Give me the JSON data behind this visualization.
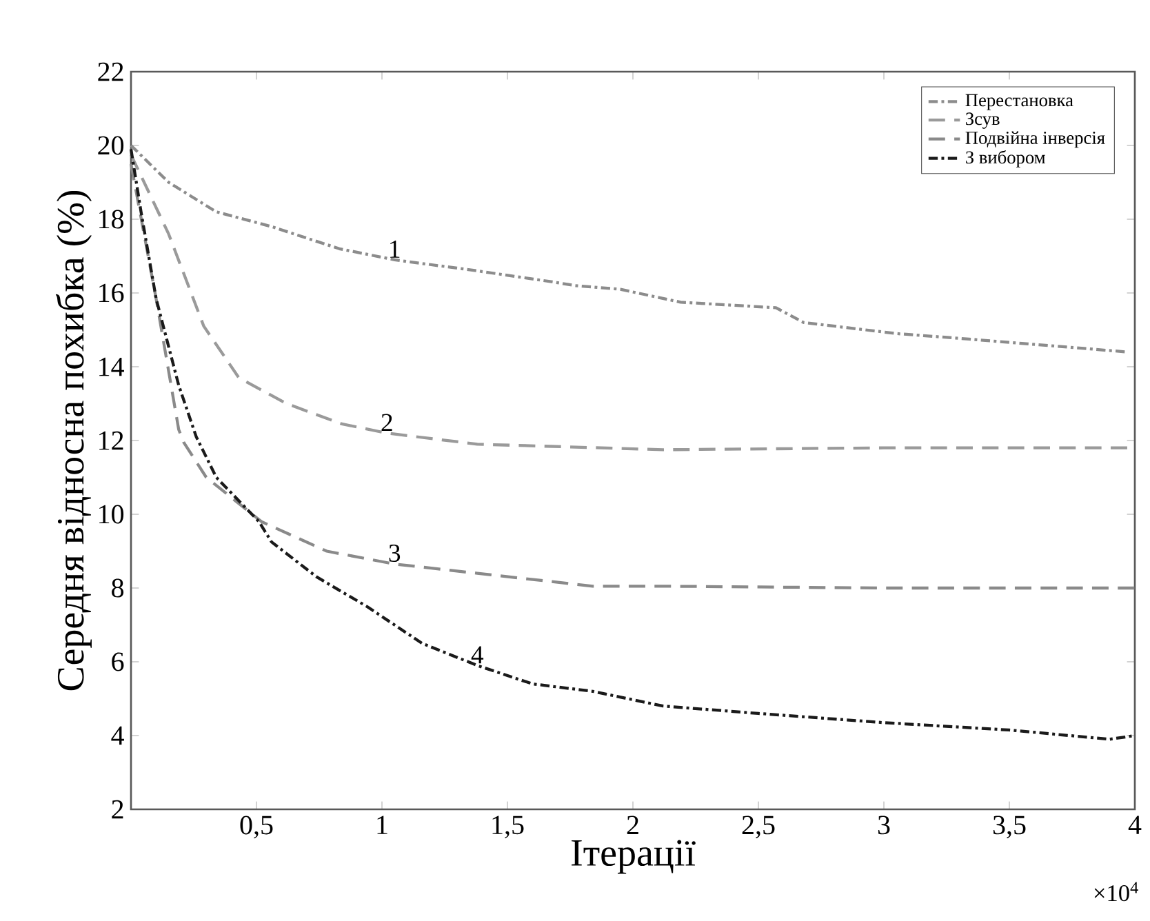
{
  "chart_data": {
    "type": "line",
    "xlabel": "Ітерації",
    "ylabel": "Середня відносна похибка (%)",
    "x": [
      0,
      0.15,
      0.34,
      0.56,
      0.83,
      1.05,
      1.38,
      1.68,
      1.77,
      1.95,
      2.19,
      2.57,
      2.68,
      3.05,
      3.34,
      3.97
    ],
    "series": [
      {
        "name": "Перестановка",
        "color": "#8c8c8c",
        "line_style": "dashdot",
        "values": [
          20.0,
          19.0,
          18.2,
          17.8,
          17.2,
          16.9,
          16.6,
          16.3,
          16.2,
          16.1,
          15.75,
          15.6,
          15.2,
          14.9,
          14.75,
          14.4
        ]
      },
      {
        "name": "Зсув",
        "color": "#9a9a9a",
        "line_style": "dashed",
        "x": [
          0,
          0.15,
          0.29,
          0.43,
          0.62,
          0.84,
          1.02,
          1.38,
          2.12,
          3.0,
          4.0
        ],
        "values": [
          19.75,
          17.6,
          15.1,
          13.7,
          13.0,
          12.45,
          12.2,
          11.9,
          11.75,
          11.8,
          11.8
        ]
      },
      {
        "name": "Подвійна інверсія",
        "color": "#8a8a8a",
        "line_style": "dashed",
        "x": [
          0,
          0.1,
          0.19,
          0.21,
          0.3,
          0.52,
          0.78,
          1.05,
          1.38,
          1.84,
          2.12,
          3.0,
          4.0
        ],
        "values": [
          19.5,
          15.85,
          12.3,
          11.95,
          11.0,
          9.8,
          9.0,
          8.65,
          8.4,
          8.05,
          8.05,
          8.0,
          8.0
        ]
      },
      {
        "name": "З вибором",
        "color": "#1a1a1a",
        "line_style": "dashdot",
        "x": [
          0,
          0.04,
          0.1,
          0.19,
          0.26,
          0.34,
          0.51,
          0.56,
          0.74,
          0.94,
          1.16,
          1.38,
          1.6,
          1.84,
          2.12,
          2.5,
          3.0,
          3.5,
          3.9,
          4.0
        ],
        "values": [
          19.9,
          18.2,
          15.85,
          13.5,
          12.1,
          11.0,
          9.8,
          9.25,
          8.3,
          7.5,
          6.5,
          5.9,
          5.4,
          5.2,
          4.8,
          4.6,
          4.35,
          4.15,
          3.9,
          4.0
        ]
      }
    ],
    "xlim": [
      0,
      4
    ],
    "xticks": [
      {
        "value": 0.5,
        "label": "0,5"
      },
      1,
      {
        "value": 1.5,
        "label": "1,5"
      },
      2,
      {
        "value": 2.5,
        "label": "2,5"
      },
      3,
      {
        "value": 3.5,
        "label": "3,5"
      },
      4
    ],
    "ylim": [
      2,
      22
    ],
    "yticks": [
      2,
      4,
      6,
      8,
      10,
      12,
      14,
      16,
      18,
      20,
      22
    ],
    "grid": false,
    "legend": "top right",
    "marker": "none",
    "annotations": [
      {
        "text": "1",
        "x": 1.05,
        "y": 16.9
      },
      {
        "text": "2",
        "x": 1.02,
        "y": 12.2
      },
      {
        "text": "3",
        "x": 1.05,
        "y": 8.65
      },
      {
        "text": "4",
        "x": 1.38,
        "y": 5.9
      },
      "×10$^{4}$"
    ]
  }
}
